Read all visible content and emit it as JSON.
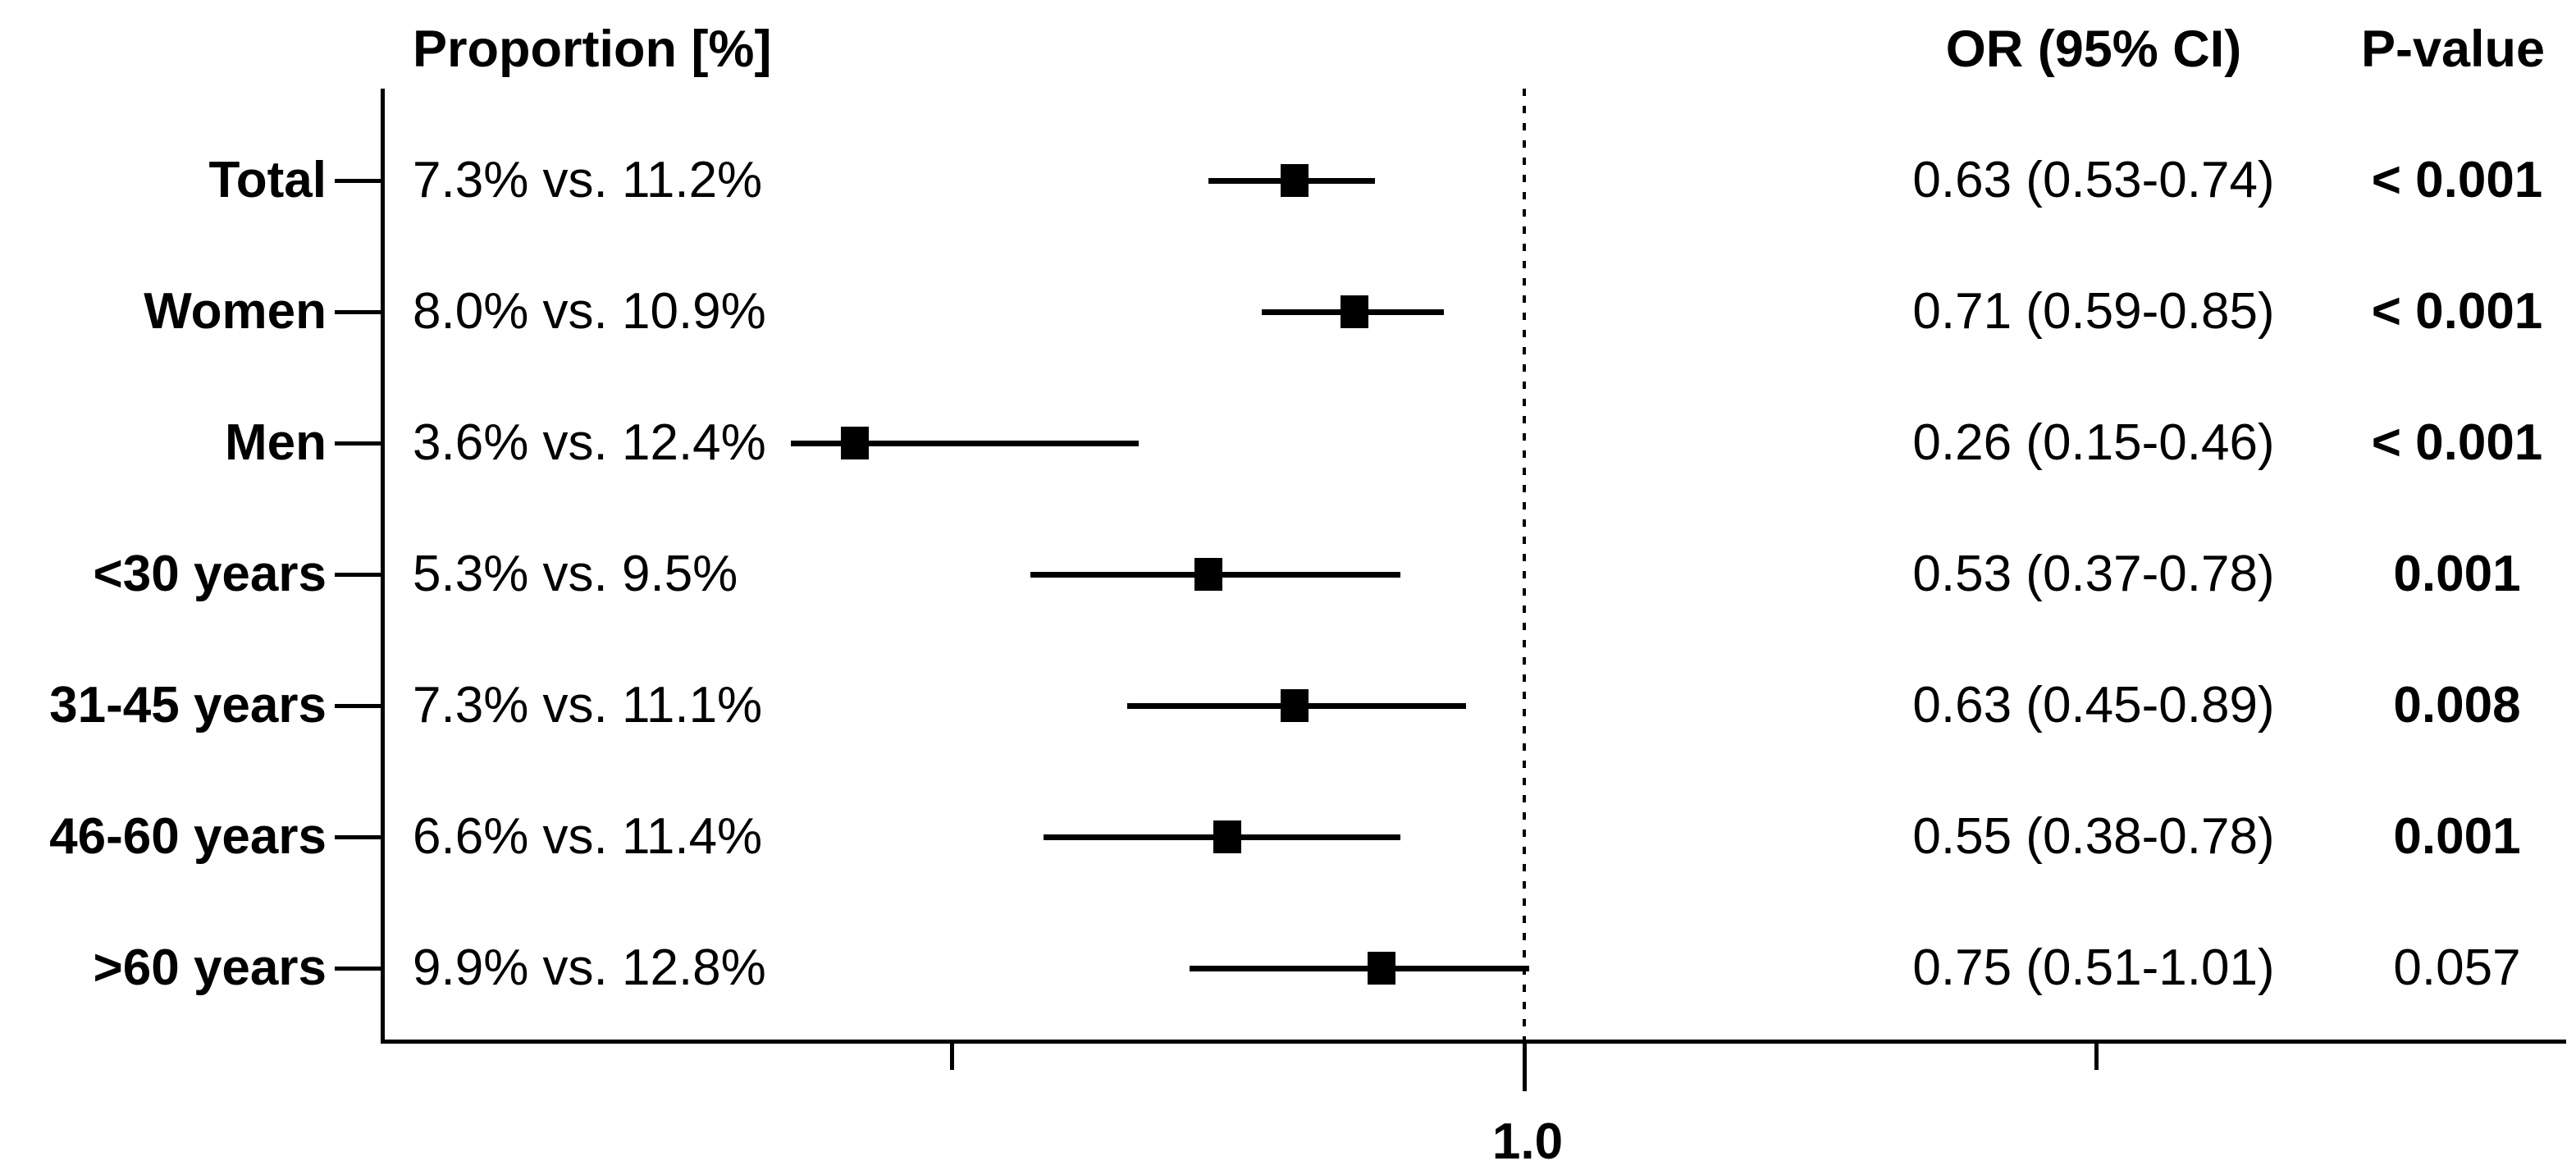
{
  "chart_data": {
    "type": "forest",
    "title": "",
    "column_headers": {
      "proportion": "Proportion [%]",
      "or": "OR (95% CI)",
      "p": "P-value"
    },
    "x_axis": {
      "scale": "log10",
      "reference_value": 1.0,
      "reference_label": "1.0",
      "ticks": [
        0.316,
        1.0,
        3.162
      ],
      "range": [
        0.1,
        8.1
      ],
      "grid": false,
      "reference_line_style": "dotted"
    },
    "marker_color": "#000000",
    "rows": [
      {
        "label": "Total",
        "proportion": "7.3% vs. 11.2%",
        "or": 0.63,
        "ci_low": 0.53,
        "ci_high": 0.74,
        "or_ci_text": "0.63 (0.53-0.74)",
        "p_value": "< 0.001",
        "p_bold": true
      },
      {
        "label": "Women",
        "proportion": "8.0% vs. 10.9%",
        "or": 0.71,
        "ci_low": 0.59,
        "ci_high": 0.85,
        "or_ci_text": "0.71 (0.59-0.85)",
        "p_value": "< 0.001",
        "p_bold": true
      },
      {
        "label": "Men",
        "proportion": "3.6% vs. 12.4%",
        "or": 0.26,
        "ci_low": 0.15,
        "ci_high": 0.46,
        "or_ci_text": "0.26 (0.15-0.46)",
        "p_value": "< 0.001",
        "p_bold": true
      },
      {
        "label": "<30 years",
        "proportion": "5.3% vs. 9.5%",
        "or": 0.53,
        "ci_low": 0.37,
        "ci_high": 0.78,
        "or_ci_text": "0.53 (0.37-0.78)",
        "p_value": "0.001",
        "p_bold": true
      },
      {
        "label": "31-45 years",
        "proportion": "7.3% vs. 11.1%",
        "or": 0.63,
        "ci_low": 0.45,
        "ci_high": 0.89,
        "or_ci_text": "0.63 (0.45-0.89)",
        "p_value": "0.008",
        "p_bold": true
      },
      {
        "label": "46-60 years",
        "proportion": "6.6% vs. 11.4%",
        "or": 0.55,
        "ci_low": 0.38,
        "ci_high": 0.78,
        "or_ci_text": "0.55 (0.38-0.78)",
        "p_value": "0.001",
        "p_bold": true
      },
      {
        "label": ">60 years",
        "proportion": "9.9% vs. 12.8%",
        "or": 0.75,
        "ci_low": 0.51,
        "ci_high": 1.01,
        "or_ci_text": "0.75 (0.51-1.01)",
        "p_value": "0.057",
        "p_bold": false
      }
    ]
  }
}
